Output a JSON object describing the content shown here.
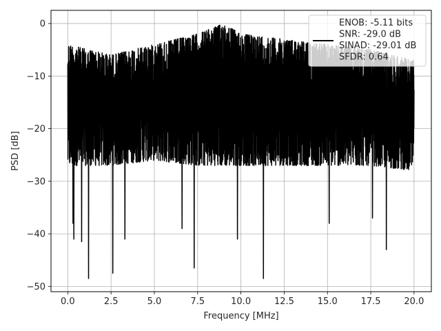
{
  "chart_data": {
    "type": "line",
    "xlabel": "Frequency [MHz]",
    "ylabel": "PSD [dB]",
    "xlim": [
      -0.97,
      21.0
    ],
    "ylim": [
      -51.0,
      2.5
    ],
    "x_ticks": [
      0.0,
      2.5,
      5.0,
      7.5,
      10.0,
      12.5,
      15.0,
      17.5,
      20.0
    ],
    "x_tick_labels": [
      "0.0",
      "2.5",
      "5.0",
      "7.5",
      "10.0",
      "12.5",
      "15.0",
      "17.5",
      "20.0"
    ],
    "y_ticks": [
      0,
      -10,
      -20,
      -30,
      -40,
      -50
    ],
    "y_tick_labels": [
      "0",
      "−10",
      "−20",
      "−30",
      "−40",
      "−50"
    ],
    "grid": true,
    "legend_placement": "upper right",
    "series": [
      {
        "color": "#000000",
        "x_range": [
          0.0,
          20.0
        ],
        "upper_envelope": {
          "x": [
            0.0,
            2.5,
            5.0,
            7.5,
            9.0,
            10.0,
            12.5,
            15.0,
            17.5,
            20.0
          ],
          "y": [
            -4,
            -6,
            -4,
            -2,
            0,
            -2,
            -3,
            -4,
            -5,
            -7
          ]
        },
        "lower_envelope": {
          "x": [
            0.0,
            2.5,
            5.0,
            7.5,
            10.0,
            12.5,
            15.0,
            17.5,
            20.0
          ],
          "y": [
            -27,
            -27,
            -26,
            -27,
            -27,
            -27,
            -27,
            -27,
            -28
          ]
        },
        "dips": [
          {
            "x": 0.3,
            "y": -38
          },
          {
            "x": 0.35,
            "y": -41
          },
          {
            "x": 0.8,
            "y": -41.5
          },
          {
            "x": 1.2,
            "y": -48.5
          },
          {
            "x": 2.6,
            "y": -47.5
          },
          {
            "x": 3.3,
            "y": -41
          },
          {
            "x": 6.6,
            "y": -39
          },
          {
            "x": 7.3,
            "y": -46.5
          },
          {
            "x": 9.8,
            "y": -41
          },
          {
            "x": 11.3,
            "y": -48.5
          },
          {
            "x": 15.1,
            "y": -38
          },
          {
            "x": 17.6,
            "y": -37
          },
          {
            "x": 18.4,
            "y": -43
          }
        ]
      }
    ],
    "legend": {
      "lines": [
        "ENOB: -5.11 bits",
        "SNR: -29.0 dB",
        "SINAD: -29.01 dB",
        "SFDR: 0.64"
      ]
    }
  }
}
